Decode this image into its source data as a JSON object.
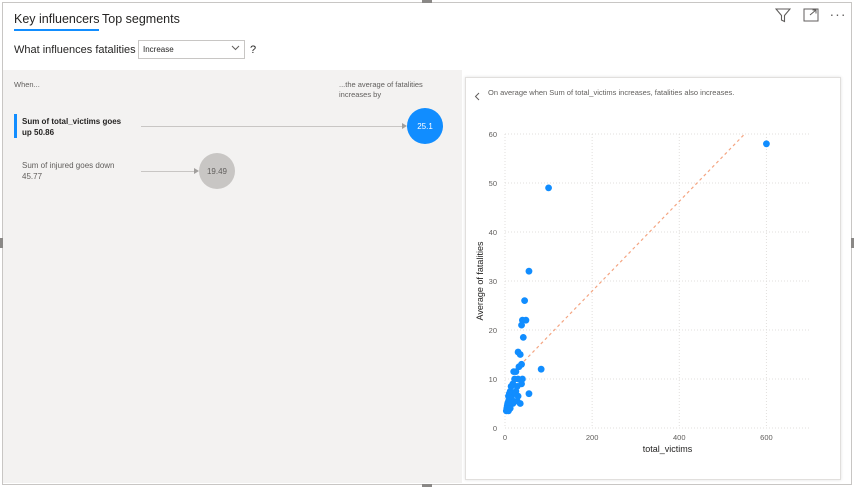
{
  "tabs": [
    {
      "label": "Key influencers",
      "active": true
    },
    {
      "label": "Top segments",
      "active": false
    }
  ],
  "toolbar": {
    "icons": [
      "filter-icon",
      "focus-mode-icon",
      "more-options-icon"
    ],
    "more_glyph": "···"
  },
  "question": {
    "label": "What influences fatalities to",
    "selected": "Increase",
    "help": "?"
  },
  "columns": {
    "when": "When...",
    "avg": "...the average of fatalities increases by"
  },
  "influencers": [
    {
      "label": "Sum of total_victims goes up 50.86",
      "value": "25.1",
      "selected": true
    },
    {
      "label": "Sum of injured goes down 45.77",
      "value": "19.49",
      "selected": false
    }
  ],
  "detail": {
    "back_icon": "chevron-left-icon",
    "insight": "On average when Sum of total_victims increases, fatalities also increases."
  },
  "colors": {
    "accent": "#118dff",
    "trend": "#f4a582",
    "gray_bubble": "#c8c6c4"
  },
  "chart_data": {
    "type": "scatter",
    "xlabel": "total_victims",
    "ylabel": "Average of fatalities",
    "xlim": [
      0,
      700
    ],
    "ylim": [
      0,
      60
    ],
    "xticks": [
      0,
      200,
      400,
      600
    ],
    "yticks": [
      0,
      10,
      20,
      30,
      40,
      50,
      60
    ],
    "grid": true,
    "trendline": {
      "style": "dashed",
      "from": [
        15,
        11
      ],
      "to": [
        550,
        60
      ]
    },
    "points": [
      [
        600,
        58
      ],
      [
        100,
        49
      ],
      [
        55,
        32
      ],
      [
        45,
        26
      ],
      [
        40,
        22
      ],
      [
        48,
        22
      ],
      [
        38,
        21
      ],
      [
        42,
        18.5
      ],
      [
        30,
        15.5
      ],
      [
        35,
        15
      ],
      [
        38,
        13
      ],
      [
        32,
        12.5
      ],
      [
        25,
        11.5
      ],
      [
        20,
        11.5
      ],
      [
        83,
        12
      ],
      [
        30,
        10
      ],
      [
        40,
        10
      ],
      [
        22,
        10
      ],
      [
        38,
        9
      ],
      [
        18,
        9
      ],
      [
        28,
        8.5
      ],
      [
        14,
        8.5
      ],
      [
        25,
        7.5
      ],
      [
        12,
        7.5
      ],
      [
        20,
        7
      ],
      [
        10,
        7
      ],
      [
        55,
        7
      ],
      [
        8,
        6.5
      ],
      [
        30,
        6.5
      ],
      [
        15,
        6
      ],
      [
        8,
        5.5
      ],
      [
        28,
        5.5
      ],
      [
        35,
        5
      ],
      [
        6,
        5
      ],
      [
        18,
        5
      ],
      [
        5,
        4.5
      ],
      [
        10,
        4.5
      ],
      [
        4,
        4
      ],
      [
        12,
        4
      ],
      [
        3,
        3.5
      ],
      [
        8,
        3.5
      ]
    ]
  }
}
